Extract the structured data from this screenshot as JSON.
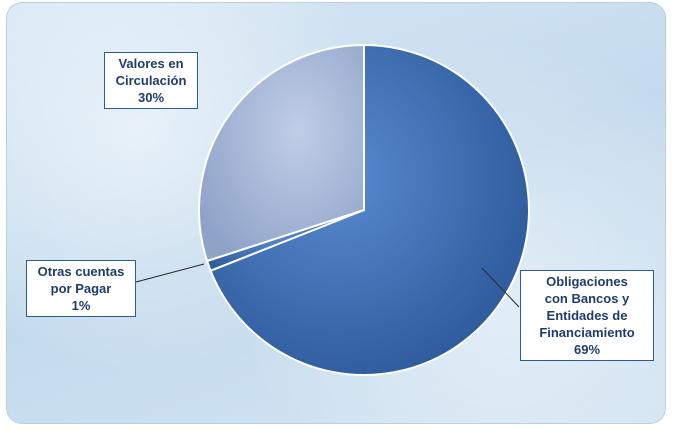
{
  "chart_data": {
    "type": "pie",
    "title": "",
    "slices": [
      {
        "label_lines": [
          "Obligaciones",
          "con Bancos y",
          "Entidades de",
          "Financiamiento"
        ],
        "percent_text": "69%",
        "value": 69,
        "color": "#3d6eb2"
      },
      {
        "label_lines": [
          "Otras cuentas",
          "por Pagar"
        ],
        "percent_text": "1%",
        "value": 1,
        "color": "#3d6eb2"
      },
      {
        "label_lines": [
          "Valores en",
          "Circulación"
        ],
        "percent_text": "30%",
        "value": 30,
        "color": "#a4b6d6"
      }
    ],
    "legend": "none"
  }
}
